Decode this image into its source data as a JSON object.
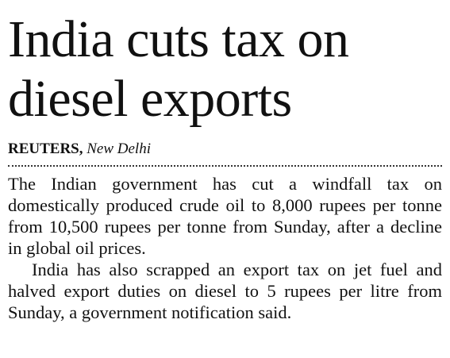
{
  "headline": "India cuts tax on diesel exports",
  "byline": {
    "agency": "REUTERS,",
    "location": "New Delhi"
  },
  "paragraphs": [
    "The Indian government has cut a windfall tax on domestically produced crude oil to 8,000 rupees per tonne from 10,500 rupees per tonne from Sunday, after a decline in global oil prices.",
    "India has also scrapped an export tax on jet fuel and halved export duties on diesel to 5 rupees per litre from Sunday, a government notification said."
  ]
}
